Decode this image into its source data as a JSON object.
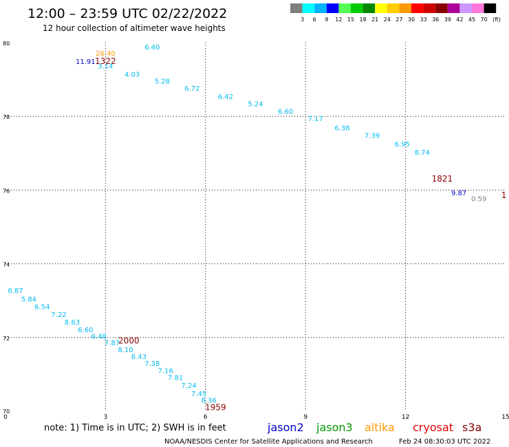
{
  "header": {
    "title": "12:00 – 23:59 UTC 02/22/2022",
    "subtitle": "12 hour collection of altimeter wave heights"
  },
  "legend_scale": {
    "colors": [
      "#7f7f7f",
      "#00ffff",
      "#00b2ff",
      "#0000ff",
      "#55ff55",
      "#00cc00",
      "#008800",
      "#ffff00",
      "#ffcc00",
      "#ff9900",
      "#ff0000",
      "#cc0000",
      "#880000",
      "#aa0099",
      "#cc99ff",
      "#ff77dd",
      "#000000"
    ],
    "labels": [
      "3",
      "6",
      "9",
      "12",
      "15",
      "18",
      "21",
      "24",
      "27",
      "30",
      "33",
      "36",
      "39",
      "42",
      "45",
      "70"
    ],
    "unit": "(ft)"
  },
  "footer": {
    "note": "note: 1) Time is in UTC; 2) SWH is in feet",
    "credit": "NOAA/NESDIS Center for Satellite Applications and Research",
    "timestamp": "Feb 24 08:30:03 UTC 2022",
    "satellites": [
      {
        "name": "jason2",
        "color": "#0000cc"
      },
      {
        "name": "jason3",
        "color": "#009900"
      },
      {
        "name": "altika",
        "color": "#ff9900"
      },
      {
        "name": "cryosat",
        "color": "#dd0000"
      },
      {
        "name": "s3a",
        "color": "#880000"
      }
    ]
  },
  "chart_data": {
    "type": "scatter",
    "title": "12:00 – 23:59 UTC 02/22/2022",
    "subtitle": "12 hour collection of altimeter wave heights",
    "xlabel": "",
    "ylabel": "",
    "xlim": [
      0,
      15
    ],
    "ylim": [
      70,
      80
    ],
    "x_ticks": [
      "0",
      "3",
      "6",
      "9",
      "12",
      "15"
    ],
    "y_ticks": [
      "70",
      "72",
      "74",
      "76",
      "78",
      "80"
    ],
    "grid": true,
    "series": [
      {
        "color": "#0000cc",
        "points": [
          {
            "x": 2.4,
            "y": 79.42,
            "label": "11.91"
          },
          {
            "x": 13.6,
            "y": 75.86,
            "label": "9.87"
          }
        ]
      },
      {
        "color": "#ff9900",
        "points": [
          {
            "x": 3.0,
            "y": 79.65,
            "label": "26.40"
          }
        ]
      },
      {
        "color": "#880000",
        "points": [
          {
            "x": 3.0,
            "y": 79.42,
            "label": "1322"
          },
          {
            "x": 13.1,
            "y": 76.23,
            "label": "1821"
          },
          {
            "x": 3.7,
            "y": 71.84,
            "label": "2000"
          },
          {
            "x": 6.3,
            "y": 70.03,
            "label": "1959"
          },
          {
            "x": 14.95,
            "y": 75.78,
            "label": "1"
          }
        ]
      },
      {
        "color": "#7f7f7f",
        "points": [
          {
            "x": 14.2,
            "y": 75.7,
            "label": "0.59"
          }
        ]
      },
      {
        "color": "#00bbee",
        "points": [
          {
            "x": 3.0,
            "y": 79.3,
            "label": "3.14"
          },
          {
            "x": 4.4,
            "y": 79.81,
            "label": "6.40"
          },
          {
            "x": 3.8,
            "y": 79.08,
            "label": "4.03"
          },
          {
            "x": 4.7,
            "y": 78.89,
            "label": "5.28"
          },
          {
            "x": 5.6,
            "y": 78.69,
            "label": "6.72"
          },
          {
            "x": 6.6,
            "y": 78.47,
            "label": "6.42"
          },
          {
            "x": 7.5,
            "y": 78.27,
            "label": "5.24"
          },
          {
            "x": 8.4,
            "y": 78.07,
            "label": "6.60"
          },
          {
            "x": 9.3,
            "y": 77.87,
            "label": "7.17"
          },
          {
            "x": 10.1,
            "y": 77.62,
            "label": "6.38"
          },
          {
            "x": 11.0,
            "y": 77.42,
            "label": "7.39"
          },
          {
            "x": 11.9,
            "y": 77.18,
            "label": "6.95"
          },
          {
            "x": 12.5,
            "y": 76.96,
            "label": "8.74"
          },
          {
            "x": 0.3,
            "y": 73.21,
            "label": "6.87"
          },
          {
            "x": 0.7,
            "y": 72.98,
            "label": "5.84"
          },
          {
            "x": 1.1,
            "y": 72.77,
            "label": "6.54"
          },
          {
            "x": 1.6,
            "y": 72.56,
            "label": "7.22"
          },
          {
            "x": 2.0,
            "y": 72.35,
            "label": "8.63"
          },
          {
            "x": 2.4,
            "y": 72.15,
            "label": "6.60"
          },
          {
            "x": 2.8,
            "y": 71.97,
            "label": "6.48"
          },
          {
            "x": 3.2,
            "y": 71.79,
            "label": "7.87"
          },
          {
            "x": 3.6,
            "y": 71.6,
            "label": "8.10"
          },
          {
            "x": 4.0,
            "y": 71.42,
            "label": "8.43"
          },
          {
            "x": 4.4,
            "y": 71.23,
            "label": "7.38"
          },
          {
            "x": 4.8,
            "y": 71.04,
            "label": "7.16"
          },
          {
            "x": 5.1,
            "y": 70.85,
            "label": "7.81"
          },
          {
            "x": 5.5,
            "y": 70.63,
            "label": "7.24"
          },
          {
            "x": 5.8,
            "y": 70.41,
            "label": "7.45"
          },
          {
            "x": 6.1,
            "y": 70.23,
            "label": "8.36"
          }
        ]
      }
    ]
  }
}
